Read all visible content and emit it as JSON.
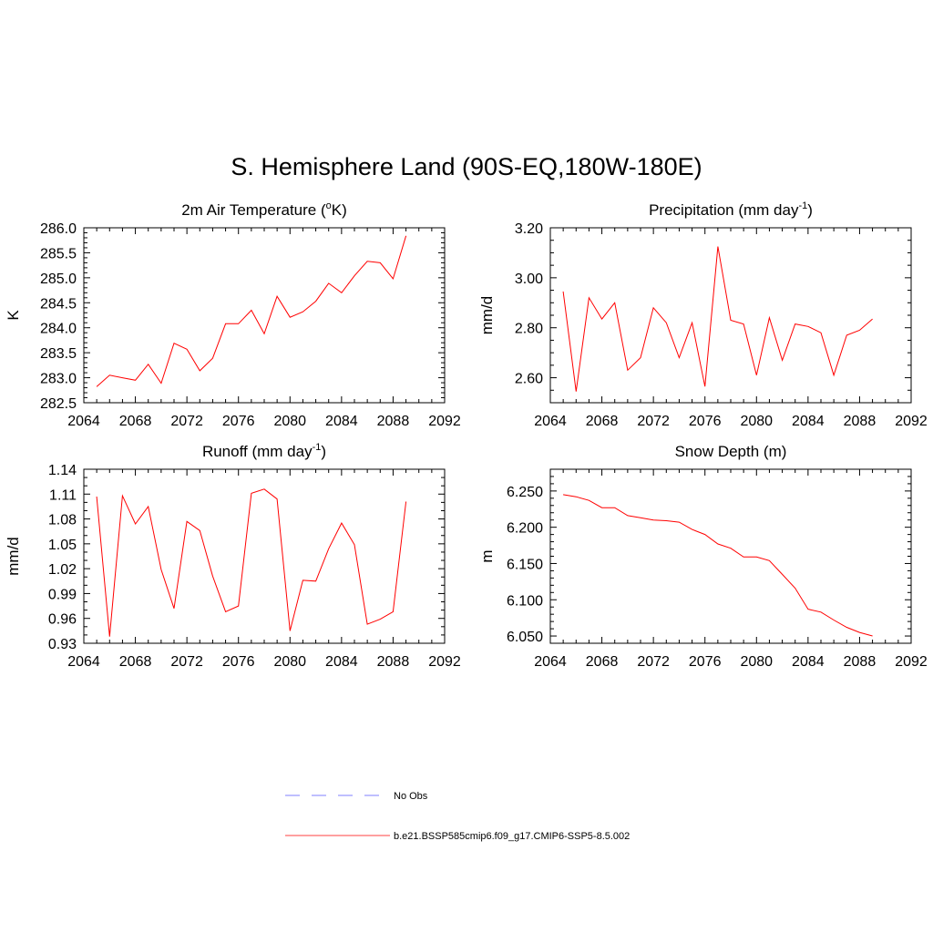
{
  "title": "S. Hemisphere Land (90S-EQ,180W-180E)",
  "legend": {
    "entries": [
      {
        "label": "No Obs",
        "color": "#9999ff",
        "style": "dashed"
      },
      {
        "label": "b.e21.BSSP585cmip6.f09_g17.CMIP6-SSP5-8.5.002",
        "color": "#ff0000",
        "style": "solid"
      }
    ]
  },
  "chart_data": [
    {
      "type": "line",
      "title": "2m Air Temperature (oK)",
      "title_parts": {
        "pre": "2m Air Temperature (",
        "sup": "o",
        "post": "K)"
      },
      "xlabel": "",
      "ylabel": "K",
      "xlim": [
        2064,
        2092
      ],
      "ylim": [
        282.5,
        286.0
      ],
      "xticks": [
        "2064",
        "2068",
        "2072",
        "2076",
        "2080",
        "2084",
        "2088",
        "2092"
      ],
      "yticks": [
        "282.5",
        "283.0",
        "283.5",
        "284.0",
        "284.5",
        "285.0",
        "285.5",
        "286.0"
      ],
      "series": [
        {
          "color": "#ff0000",
          "x": [
            2065,
            2066,
            2067,
            2068,
            2069,
            2070,
            2071,
            2072,
            2073,
            2074,
            2075,
            2076,
            2077,
            2078,
            2079,
            2080,
            2081,
            2082,
            2083,
            2084,
            2085,
            2086,
            2087,
            2088,
            2089
          ],
          "y": [
            282.82,
            283.05,
            283.0,
            282.95,
            283.27,
            282.89,
            283.69,
            283.57,
            283.14,
            283.39,
            284.08,
            284.08,
            284.35,
            283.88,
            284.63,
            284.21,
            284.32,
            284.53,
            284.89,
            284.7,
            285.04,
            285.33,
            285.3,
            284.98,
            285.84
          ]
        }
      ]
    },
    {
      "type": "line",
      "title": "Precipitation (mm day-1)",
      "title_parts": {
        "pre": "Precipitation (mm day",
        "sup": "-1",
        "post": ")"
      },
      "xlabel": "",
      "ylabel": "mm/d",
      "xlim": [
        2064,
        2092
      ],
      "ylim": [
        2.5,
        3.2
      ],
      "xticks": [
        "2064",
        "2068",
        "2072",
        "2076",
        "2080",
        "2084",
        "2088",
        "2092"
      ],
      "yticks": [
        "2.60",
        "2.80",
        "3.00",
        "3.20"
      ],
      "series": [
        {
          "color": "#ff0000",
          "x": [
            2065,
            2066,
            2067,
            2068,
            2069,
            2070,
            2071,
            2072,
            2073,
            2074,
            2075,
            2076,
            2077,
            2078,
            2079,
            2080,
            2081,
            2082,
            2083,
            2084,
            2085,
            2086,
            2087,
            2088,
            2089
          ],
          "y": [
            2.945,
            2.545,
            2.92,
            2.835,
            2.9,
            2.63,
            2.68,
            2.88,
            2.82,
            2.68,
            2.82,
            2.565,
            3.125,
            2.83,
            2.815,
            2.61,
            2.84,
            2.67,
            2.815,
            2.805,
            2.78,
            2.61,
            2.77,
            2.79,
            2.835
          ]
        }
      ]
    },
    {
      "type": "line",
      "title": "Runoff (mm day-1)",
      "title_parts": {
        "pre": "Runoff (mm day",
        "sup": "-1",
        "post": ")"
      },
      "xlabel": "",
      "ylabel": "mm/d",
      "xlim": [
        2064,
        2092
      ],
      "ylim": [
        0.93,
        1.14
      ],
      "xticks": [
        "2064",
        "2068",
        "2072",
        "2076",
        "2080",
        "2084",
        "2088",
        "2092"
      ],
      "yticks": [
        "0.93",
        "0.96",
        "0.99",
        "1.02",
        "1.05",
        "1.08",
        "1.11",
        "1.14"
      ],
      "series": [
        {
          "color": "#ff0000",
          "x": [
            2065,
            2066,
            2067,
            2068,
            2069,
            2070,
            2071,
            2072,
            2073,
            2074,
            2075,
            2076,
            2077,
            2078,
            2079,
            2080,
            2081,
            2082,
            2083,
            2084,
            2085,
            2086,
            2087,
            2088,
            2089
          ],
          "y": [
            1.107,
            0.938,
            1.108,
            1.074,
            1.095,
            1.019,
            0.972,
            1.077,
            1.066,
            1.011,
            0.968,
            0.975,
            1.111,
            1.116,
            1.104,
            0.945,
            1.006,
            1.005,
            1.044,
            1.075,
            1.049,
            0.953,
            0.959,
            0.968,
            1.101
          ]
        }
      ]
    },
    {
      "type": "line",
      "title": "Snow Depth (m)",
      "title_parts": {
        "pre": "Snow Depth (m)",
        "sup": "",
        "post": ""
      },
      "xlabel": "",
      "ylabel": "m",
      "xlim": [
        2064,
        2092
      ],
      "ylim": [
        6.04,
        6.28
      ],
      "xticks": [
        "2064",
        "2068",
        "2072",
        "2076",
        "2080",
        "2084",
        "2088",
        "2092"
      ],
      "yticks": [
        "6.050",
        "6.100",
        "6.150",
        "6.200",
        "6.250"
      ],
      "series": [
        {
          "color": "#ff0000",
          "x": [
            2065,
            2066,
            2067,
            2068,
            2069,
            2070,
            2071,
            2072,
            2073,
            2074,
            2075,
            2076,
            2077,
            2078,
            2079,
            2080,
            2081,
            2082,
            2083,
            2084,
            2085,
            2086,
            2087,
            2088,
            2089
          ],
          "y": [
            6.245,
            6.242,
            6.237,
            6.227,
            6.227,
            6.216,
            6.213,
            6.21,
            6.209,
            6.207,
            6.197,
            6.19,
            6.177,
            6.171,
            6.159,
            6.159,
            6.154,
            6.135,
            6.116,
            6.087,
            6.083,
            6.072,
            6.062,
            6.055,
            6.05
          ]
        }
      ]
    }
  ]
}
